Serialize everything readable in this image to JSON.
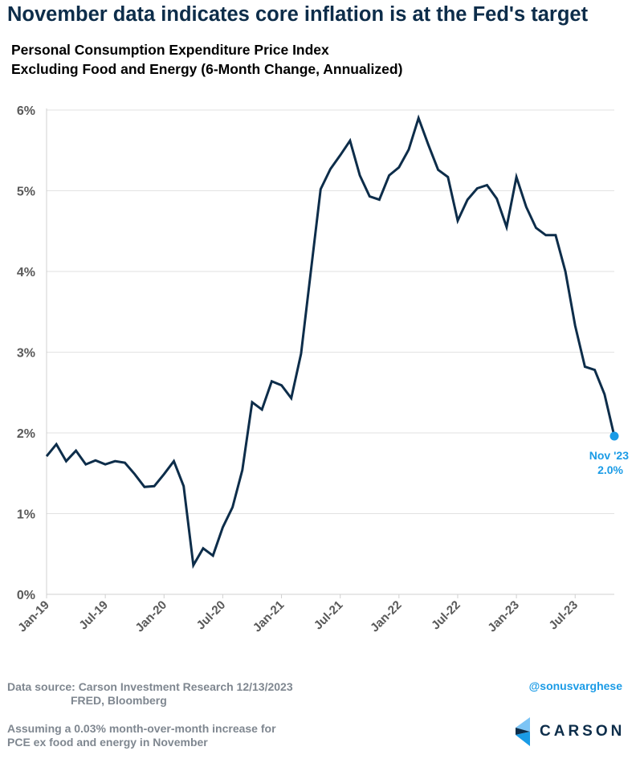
{
  "title": "November data indicates core inflation is at the Fed's target",
  "subtitle_lines": [
    "Personal Consumption Expenditure Price Index",
    "Excluding Food and Energy (6-Month Change, Annualized)"
  ],
  "chart_data": {
    "type": "line",
    "title": "Personal Consumption Expenditure Price Index Excluding Food and Energy (6-Month Change, Annualized)",
    "x_start": "Jan-19",
    "x_end": "Nov-23",
    "frequency": "monthly",
    "x_tick_labels": [
      "Jan-19",
      "Jul-19",
      "Jan-20",
      "Jul-20",
      "Jan-21",
      "Jul-21",
      "Jan-22",
      "Jul-22",
      "Jan-23",
      "Jul-23"
    ],
    "y_tick_labels": [
      "0%",
      "1%",
      "2%",
      "3%",
      "4%",
      "5%",
      "6%"
    ],
    "ylim": [
      0,
      6
    ],
    "y_unit": "%",
    "grid": "horizontal",
    "line_color": "#0d2d4a",
    "highlight_color": "#1a9be6",
    "series": [
      {
        "values": [
          1.71,
          1.86,
          1.65,
          1.78,
          1.61,
          1.66,
          1.61,
          1.65,
          1.63,
          1.49,
          1.33,
          1.34,
          1.49,
          1.65,
          1.34,
          0.36,
          0.57,
          0.48,
          0.83,
          1.08,
          1.54,
          2.38,
          2.29,
          2.64,
          2.59,
          2.43,
          2.98,
          4.0,
          5.02,
          5.27,
          5.44,
          5.62,
          5.19,
          4.93,
          4.89,
          5.19,
          5.29,
          5.51,
          5.9,
          5.57,
          5.26,
          5.17,
          4.63,
          4.89,
          5.03,
          5.07,
          4.9,
          4.55,
          5.17,
          4.8,
          4.54,
          4.45,
          4.45,
          4.0,
          3.33,
          2.82,
          2.78,
          2.48,
          1.96
        ]
      }
    ],
    "annotation": {
      "label": "Nov '23",
      "value_label": "2.0%",
      "value": 1.96
    }
  },
  "footer": {
    "source_line1": "Data source: Carson Investment Research  12/13/2023",
    "source_line2": "FRED, Bloomberg",
    "note_line1": "Assuming a 0.03% month-over-month increase for",
    "note_line2": "PCE ex food and energy in November",
    "handle": "@sonusvarghese",
    "logo_text": "CARSON"
  }
}
